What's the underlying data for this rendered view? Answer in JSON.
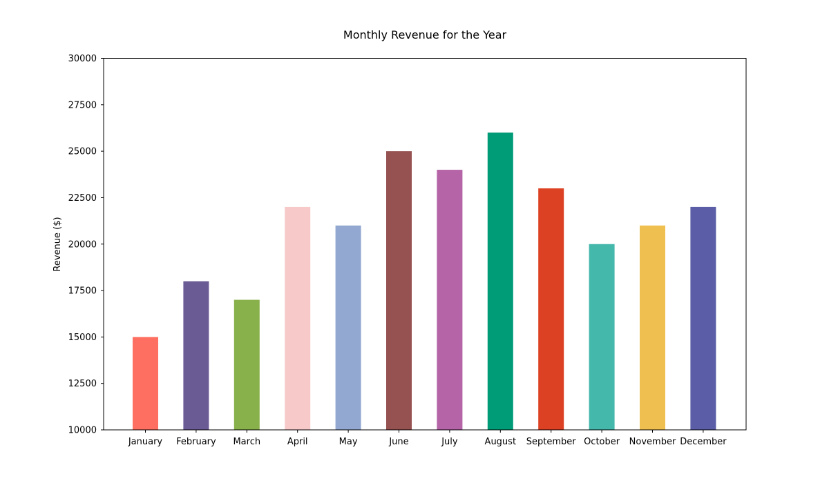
{
  "chart_data": {
    "type": "bar",
    "title": "Monthly Revenue for the Year",
    "xlabel": "",
    "ylabel": "Revenue ($)",
    "ylim": [
      10000,
      30000
    ],
    "yticks": [
      10000,
      12500,
      15000,
      17500,
      20000,
      22500,
      25000,
      27500,
      30000
    ],
    "grid": false,
    "categories": [
      "January",
      "February",
      "March",
      "April",
      "May",
      "June",
      "July",
      "August",
      "September",
      "October",
      "November",
      "December"
    ],
    "values": [
      15000,
      18000,
      17000,
      22000,
      21000,
      25000,
      24000,
      26000,
      23000,
      20000,
      21000,
      22000
    ],
    "colors": [
      "#ff6f61",
      "#6b5b95",
      "#88b04b",
      "#f7cac9",
      "#92a8d1",
      "#955251",
      "#b565a7",
      "#009b77",
      "#dd4124",
      "#45b8ac",
      "#efc050",
      "#5b5ea6"
    ]
  }
}
